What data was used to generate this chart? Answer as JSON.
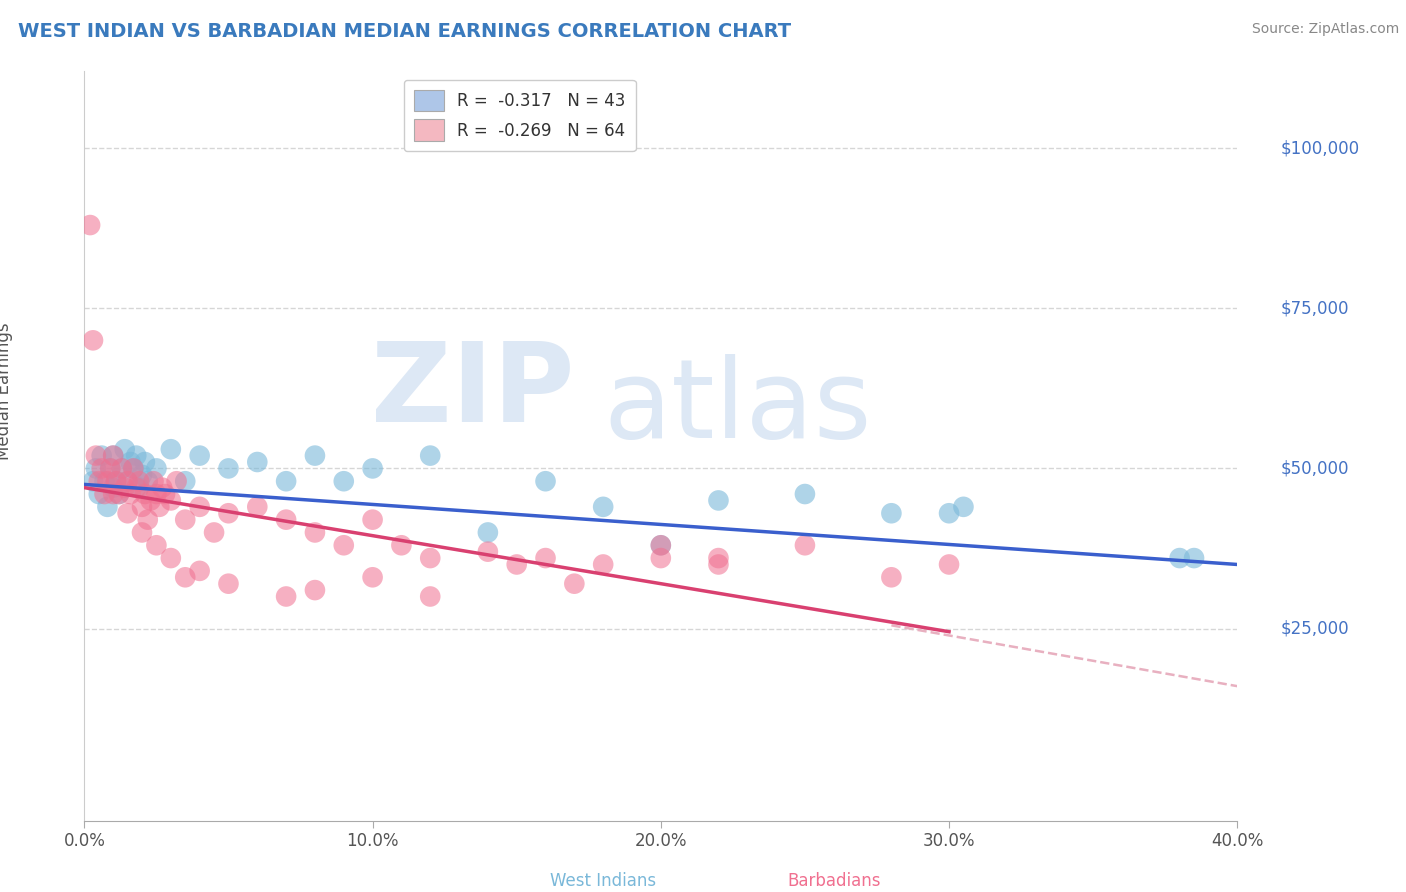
{
  "title": "WEST INDIAN VS BARBADIAN MEDIAN EARNINGS CORRELATION CHART",
  "source": "Source: ZipAtlas.com",
  "xlabel_ticks": [
    "0.0%",
    "10.0%",
    "20.0%",
    "30.0%",
    "40.0%"
  ],
  "xlabel_vals": [
    0.0,
    10.0,
    20.0,
    30.0,
    40.0
  ],
  "ylabel_vals": [
    25000,
    50000,
    75000,
    100000
  ],
  "ylabel_labels": [
    "$25,000",
    "$50,000",
    "$75,000",
    "$100,000"
  ],
  "xlim": [
    0.0,
    40.0
  ],
  "ylim": [
    -5000,
    112000
  ],
  "legend_entries": [
    {
      "label": "R =  -0.317   N = 43",
      "color": "#aec6e8"
    },
    {
      "label": "R =  -0.269   N = 64",
      "color": "#f4b8c1"
    }
  ],
  "west_indian_color": "#7ab8d9",
  "barbadian_color": "#f07090",
  "west_indian_line_color": "#3a5fcd",
  "barbadian_line_color": "#d94070",
  "dashed_line_color": "#e8b0c0",
  "background_color": "#ffffff",
  "grid_color": "#cccccc",
  "title_color": "#3a7abd",
  "right_label_color": "#4472c4",
  "watermark_color_zip": "#dde8f5",
  "watermark_color_atlas": "#dde8f5",
  "west_indians_x": [
    0.3,
    0.4,
    0.5,
    0.6,
    0.7,
    0.8,
    0.9,
    1.0,
    1.0,
    1.1,
    1.2,
    1.3,
    1.4,
    1.5,
    1.6,
    1.7,
    1.8,
    1.9,
    2.0,
    2.1,
    2.2,
    2.5,
    3.0,
    3.5,
    4.0,
    5.0,
    6.0,
    7.0,
    8.0,
    9.0,
    10.0,
    12.0,
    14.0,
    16.0,
    18.0,
    20.0,
    22.0,
    25.0,
    28.0,
    30.0,
    30.5,
    38.0,
    38.5
  ],
  "west_indians_y": [
    48000,
    50000,
    46000,
    52000,
    48000,
    44000,
    50000,
    52000,
    47000,
    48000,
    46000,
    50000,
    53000,
    48000,
    51000,
    50000,
    52000,
    47000,
    49000,
    51000,
    48000,
    50000,
    53000,
    48000,
    52000,
    50000,
    51000,
    48000,
    52000,
    48000,
    50000,
    52000,
    40000,
    48000,
    44000,
    38000,
    45000,
    46000,
    43000,
    43000,
    44000,
    36000,
    36000
  ],
  "barbadians_x": [
    0.2,
    0.3,
    0.4,
    0.5,
    0.6,
    0.7,
    0.8,
    0.9,
    1.0,
    1.0,
    1.1,
    1.2,
    1.3,
    1.4,
    1.5,
    1.5,
    1.6,
    1.7,
    1.8,
    1.9,
    2.0,
    2.1,
    2.2,
    2.3,
    2.4,
    2.5,
    2.6,
    2.7,
    2.8,
    3.0,
    3.2,
    3.5,
    4.0,
    4.5,
    5.0,
    6.0,
    7.0,
    8.0,
    9.0,
    10.0,
    11.0,
    12.0,
    14.0,
    16.0,
    18.0,
    20.0,
    22.0,
    25.0,
    28.0,
    30.0,
    2.0,
    2.5,
    3.0,
    3.5,
    4.0,
    5.0,
    7.0,
    8.0,
    10.0,
    12.0,
    15.0,
    17.0,
    20.0,
    22.0
  ],
  "barbadians_y": [
    88000,
    70000,
    52000,
    48000,
    50000,
    46000,
    48000,
    50000,
    46000,
    52000,
    48000,
    46000,
    50000,
    47000,
    48000,
    43000,
    46000,
    50000,
    47000,
    48000,
    44000,
    46000,
    42000,
    45000,
    48000,
    46000,
    44000,
    47000,
    46000,
    45000,
    48000,
    42000,
    44000,
    40000,
    43000,
    44000,
    42000,
    40000,
    38000,
    42000,
    38000,
    36000,
    37000,
    36000,
    35000,
    36000,
    35000,
    38000,
    33000,
    35000,
    40000,
    38000,
    36000,
    33000,
    34000,
    32000,
    30000,
    31000,
    33000,
    30000,
    35000,
    32000,
    38000,
    36000
  ],
  "wi_line_x0": 0,
  "wi_line_y0": 47500,
  "wi_line_x1": 40,
  "wi_line_y1": 35000,
  "bar_line_x0": 0,
  "bar_line_y0": 47000,
  "bar_line_x1": 30,
  "bar_line_y1": 24500,
  "bar_dash_x0": 28,
  "bar_dash_y0": 25500,
  "bar_dash_x1": 40,
  "bar_dash_y1": 16000
}
